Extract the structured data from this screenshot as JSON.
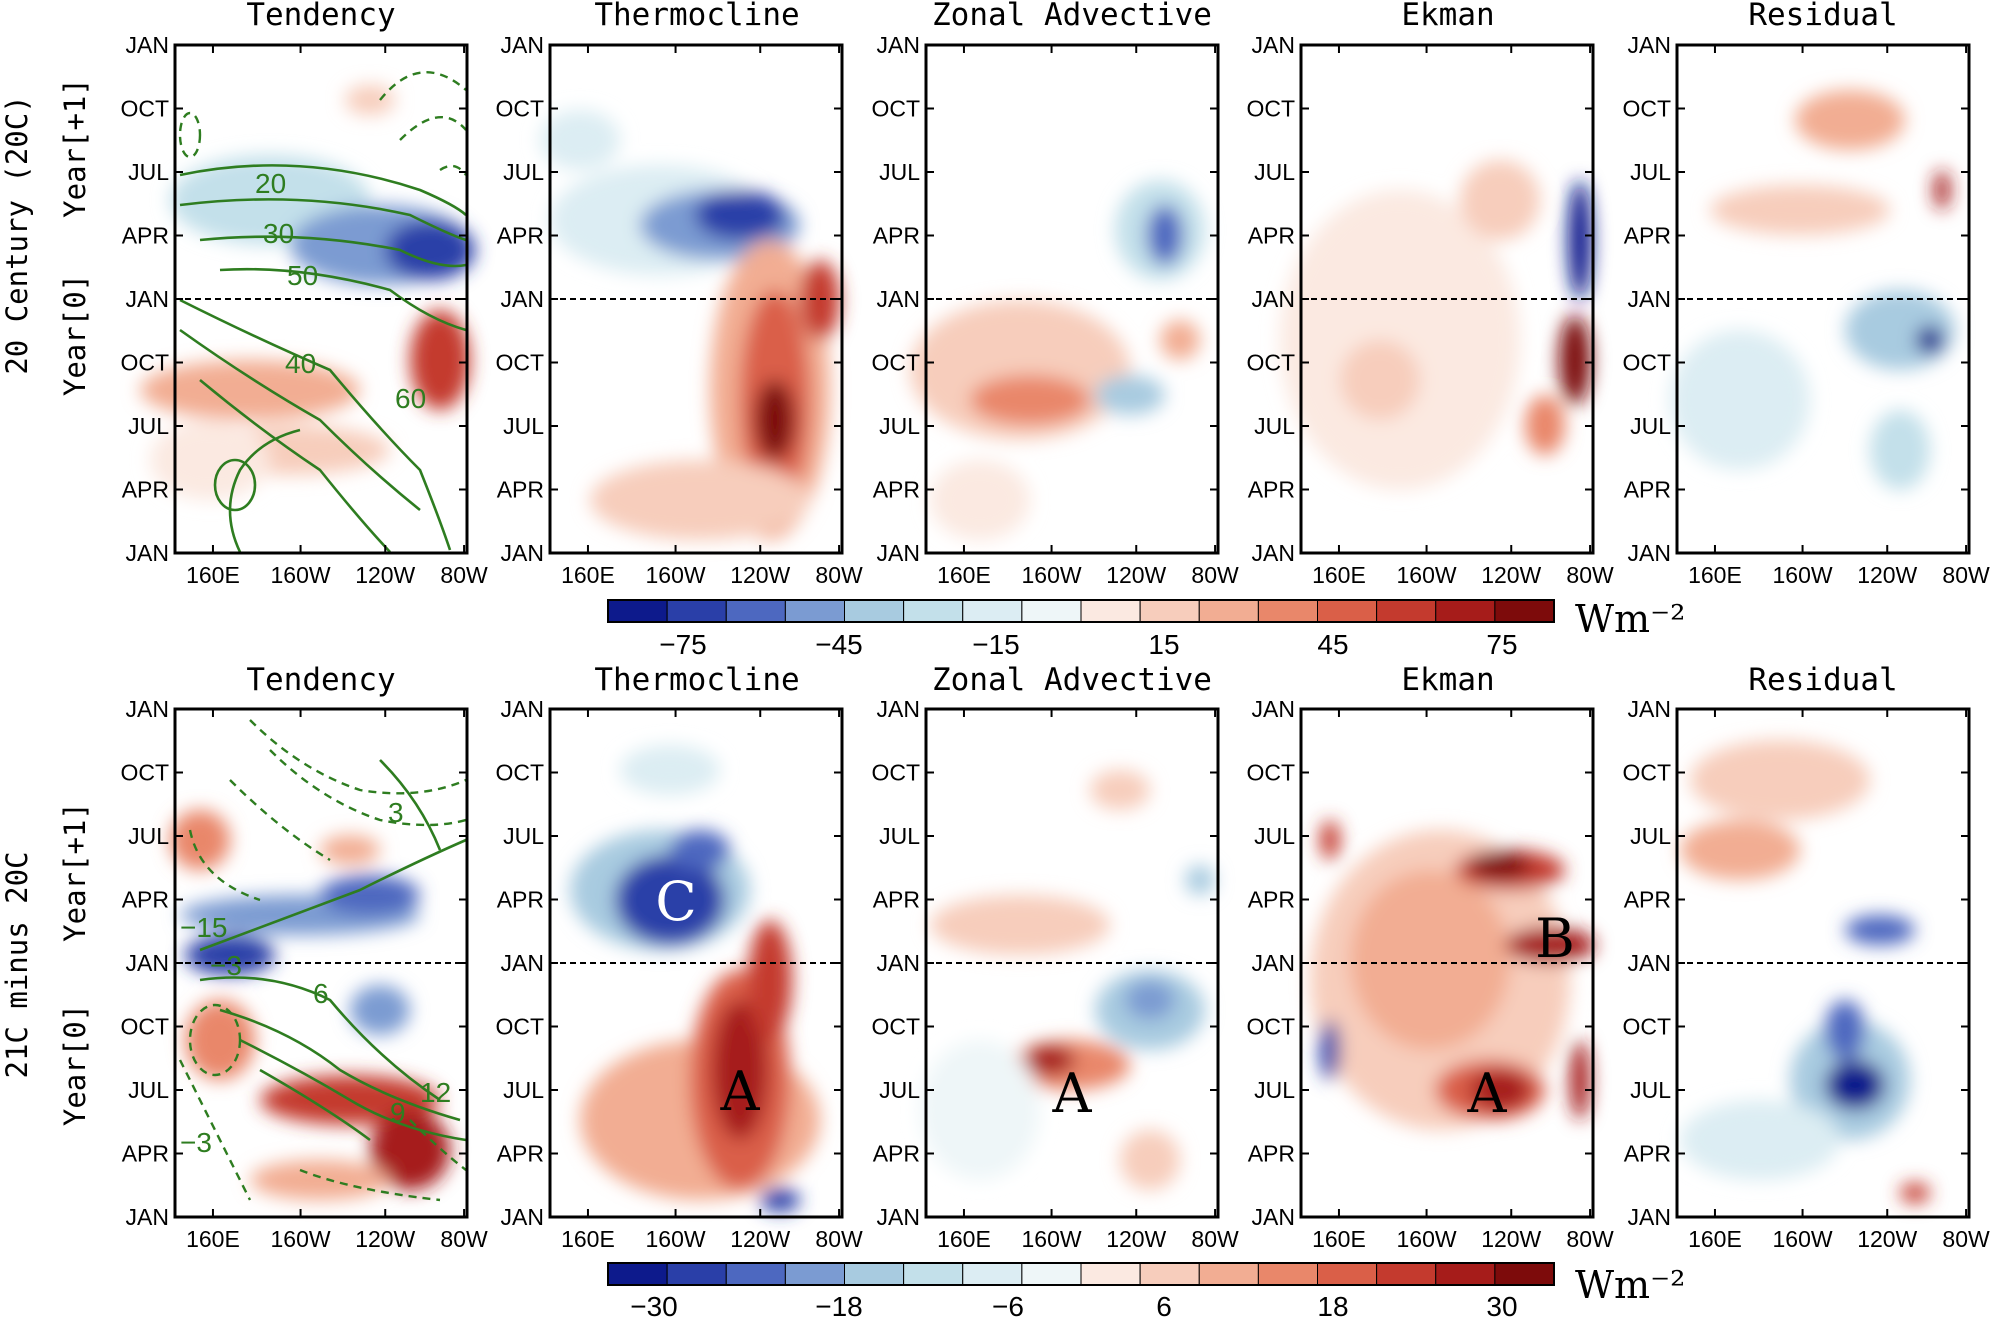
{
  "chart_data": {
    "type": "heatmap",
    "panel_titles": [
      "Tendency",
      "Thermocline",
      "Zonal Advective",
      "Ekman",
      "Residual"
    ],
    "x_tick_labels": [
      "160E",
      "160W",
      "120W",
      "80W"
    ],
    "y_tick_labels": [
      "JAN",
      "OCT",
      "JUL",
      "APR",
      "JAN",
      "OCT",
      "JUL",
      "APR",
      "JAN"
    ],
    "rows": [
      {
        "row_label": "20 Century (20C)",
        "year_labels": [
          "Year[+1]",
          "Year[0]"
        ],
        "colorbar": {
          "labels": [
            "−75",
            "−45",
            "−15",
            "15",
            "45",
            "75"
          ],
          "unit": "Wm⁻²"
        },
        "contour_labels": [
          "20",
          "30",
          "50",
          "40",
          "60"
        ],
        "annotations": []
      },
      {
        "row_label": "21C minus 20C",
        "year_labels": [
          "Year[+1]",
          "Year[0]"
        ],
        "colorbar": {
          "labels": [
            "−30",
            "−18",
            "−6",
            "6",
            "18",
            "30"
          ],
          "unit": "Wm⁻²"
        },
        "contour_labels": [
          "3",
          "−15",
          "−3",
          "6",
          "12",
          "9",
          "−3"
        ],
        "annotations": [
          "C",
          "A",
          "A",
          "B",
          "A"
        ]
      }
    ],
    "colors": {
      "neg": [
        "#0d1a8c",
        "#2a3fa8",
        "#4d68c0",
        "#7b9bd2",
        "#a8cbe0",
        "#c3e0ea",
        "#dcedf3",
        "#eef6f8"
      ],
      "pos": [
        "#fbe9e1",
        "#f7cdbc",
        "#f2ad93",
        "#e9876a",
        "#da5f48",
        "#c43a2e",
        "#a61c1a",
        "#7d0b0b"
      ],
      "contour": "#2e7d20"
    }
  }
}
